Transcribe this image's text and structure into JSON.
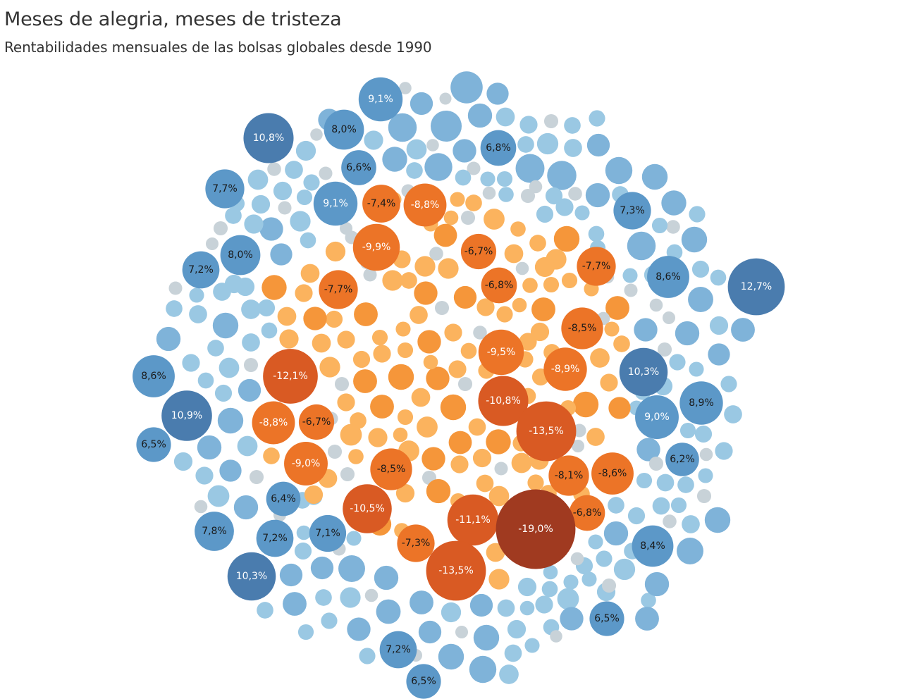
{
  "title": "Meses de alegria, meses de tristeza",
  "subtitle": "Rentabilidades mensuales de las bolsas globales desde 1990",
  "chart_data": {
    "type": "packed-bubble",
    "value_unit": "%",
    "color_scale": {
      "strong_negative": "#a03a20",
      "negative_dark": "#d95a23",
      "negative": "#ec7427",
      "negative_mid": "#f5963a",
      "negative_light": "#fbb35e",
      "neutral": "#c8d2d8",
      "positive_light": "#9ac8e3",
      "positive": "#7fb3d9",
      "positive_mid": "#5c98c8",
      "positive_dark": "#4a7cae"
    },
    "labeled_bubbles": [
      {
        "label": "9,1%",
        "value": 9.1
      },
      {
        "label": "8,0%",
        "value": 8.0
      },
      {
        "label": "10,8%",
        "value": 10.8
      },
      {
        "label": "6,8%",
        "value": 6.8
      },
      {
        "label": "6,6%",
        "value": 6.6
      },
      {
        "label": "7,7%",
        "value": 7.7
      },
      {
        "label": "9,1%",
        "value": 9.1
      },
      {
        "label": "-7,4%",
        "value": -7.4
      },
      {
        "label": "-8,8%",
        "value": -8.8
      },
      {
        "label": "7,3%",
        "value": 7.3
      },
      {
        "label": "-9,9%",
        "value": -9.9
      },
      {
        "label": "-6,7%",
        "value": -6.7
      },
      {
        "label": "8,0%",
        "value": 8.0
      },
      {
        "label": "7,2%",
        "value": 7.2
      },
      {
        "label": "-7,7%",
        "value": -7.7
      },
      {
        "label": "8,6%",
        "value": 8.6
      },
      {
        "label": "12,7%",
        "value": 12.7
      },
      {
        "label": "-7,7%",
        "value": -7.7
      },
      {
        "label": "-6,8%",
        "value": -6.8
      },
      {
        "label": "-8,5%",
        "value": -8.5
      },
      {
        "label": "-9,5%",
        "value": -9.5
      },
      {
        "label": "-12,1%",
        "value": -12.1
      },
      {
        "label": "-8,9%",
        "value": -8.9
      },
      {
        "label": "8,6%",
        "value": 8.6
      },
      {
        "label": "10,3%",
        "value": 10.3
      },
      {
        "label": "10,9%",
        "value": 10.9
      },
      {
        "label": "-10,8%",
        "value": -10.8
      },
      {
        "label": "8,9%",
        "value": 8.9
      },
      {
        "label": "9,0%",
        "value": 9.0
      },
      {
        "label": "-8,8%",
        "value": -8.8
      },
      {
        "label": "-6,7%",
        "value": -6.7
      },
      {
        "label": "6,5%",
        "value": 6.5
      },
      {
        "label": "-13,5%",
        "value": -13.5
      },
      {
        "label": "-9,0%",
        "value": -9.0
      },
      {
        "label": "6,2%",
        "value": 6.2
      },
      {
        "label": "-8,5%",
        "value": -8.5
      },
      {
        "label": "-8,1%",
        "value": -8.1
      },
      {
        "label": "-8,6%",
        "value": -8.6
      },
      {
        "label": "6,4%",
        "value": 6.4
      },
      {
        "label": "-10,5%",
        "value": -10.5
      },
      {
        "label": "-6,8%",
        "value": -6.8
      },
      {
        "label": "-11,1%",
        "value": -11.1
      },
      {
        "label": "7,8%",
        "value": 7.8
      },
      {
        "label": "7,1%",
        "value": 7.1
      },
      {
        "label": "-19,0%",
        "value": -19.0
      },
      {
        "label": "7,2%",
        "value": 7.2
      },
      {
        "label": "8,4%",
        "value": 8.4
      },
      {
        "label": "-7,3%",
        "value": -7.3
      },
      {
        "label": "10,3%",
        "value": 10.3
      },
      {
        "label": "-13,5%",
        "value": -13.5
      },
      {
        "label": "6,5%",
        "value": 6.5
      },
      {
        "label": "7,2%",
        "value": 7.2
      },
      {
        "label": "6,5%",
        "value": 6.5
      }
    ]
  }
}
